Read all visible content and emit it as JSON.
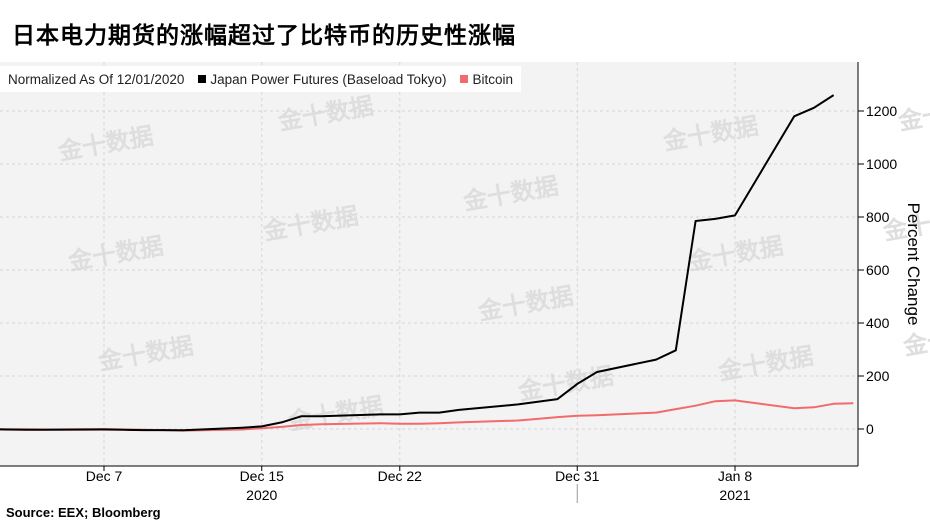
{
  "headline": "日本电力期货的涨幅超过了比特币的历史性涨幅",
  "watermark": "金十数据",
  "source": "Source: EEX; Bloomberg",
  "colors": {
    "japan": "#000000",
    "bitcoin": "#f26b6b",
    "grid": "#d6d6d6",
    "plot_bg": "#f3f3f3"
  },
  "chart_data": {
    "type": "line",
    "legend": {
      "note": "Normalized As Of 12/01/2020",
      "placement": "top-left"
    },
    "ylabel": "Percent Change",
    "y_axis_position": "right",
    "ylim": [
      -130,
      1400
    ],
    "yticks": [
      0,
      200,
      400,
      600,
      800,
      1000,
      1200
    ],
    "xlim": [
      "2020-12-01",
      "2021-01-13"
    ],
    "xticks": [
      {
        "date": "2020-12-07",
        "label": "Dec 7"
      },
      {
        "date": "2020-12-15",
        "label": "Dec 15"
      },
      {
        "date": "2020-12-22",
        "label": "Dec 22"
      },
      {
        "date": "2020-12-31",
        "label": "Dec 31"
      },
      {
        "date": "2021-01-08",
        "label": "Jan 8"
      }
    ],
    "year_labels": [
      {
        "date": "2020-12-15",
        "label": "2020"
      },
      {
        "date": "2021-01-08",
        "label": "2021"
      }
    ],
    "year_divider": "2020-12-31",
    "grid": true,
    "series": [
      {
        "name": "Japan Power Futures (Baseload Tokyo)",
        "color": "#000000",
        "points": [
          [
            "2020-12-01",
            0
          ],
          [
            "2020-12-02",
            -2
          ],
          [
            "2020-12-03",
            -3
          ],
          [
            "2020-12-04",
            -3
          ],
          [
            "2020-12-07",
            -2
          ],
          [
            "2020-12-08",
            -3
          ],
          [
            "2020-12-09",
            -4
          ],
          [
            "2020-12-10",
            -4
          ],
          [
            "2020-12-11",
            -5
          ],
          [
            "2020-12-14",
            5
          ],
          [
            "2020-12-15",
            10
          ],
          [
            "2020-12-16",
            25
          ],
          [
            "2020-12-17",
            48
          ],
          [
            "2020-12-18",
            48
          ],
          [
            "2020-12-21",
            55
          ],
          [
            "2020-12-22",
            55
          ],
          [
            "2020-12-23",
            62
          ],
          [
            "2020-12-24",
            62
          ],
          [
            "2020-12-25",
            72
          ],
          [
            "2020-12-28",
            93
          ],
          [
            "2020-12-29",
            103
          ],
          [
            "2020-12-30",
            113
          ],
          [
            "2020-12-31",
            170
          ],
          [
            "2021-01-01",
            215
          ],
          [
            "2021-01-04",
            262
          ],
          [
            "2021-01-05",
            297
          ],
          [
            "2021-01-06",
            785
          ],
          [
            "2021-01-07",
            793
          ],
          [
            "2021-01-08",
            806
          ],
          [
            "2021-01-11",
            1180
          ],
          [
            "2021-01-12",
            1212
          ],
          [
            "2021-01-13",
            1260
          ]
        ]
      },
      {
        "name": "Bitcoin",
        "color": "#f26b6b",
        "points": [
          [
            "2020-12-01",
            0
          ],
          [
            "2020-12-02",
            -1
          ],
          [
            "2020-12-03",
            -1
          ],
          [
            "2020-12-04",
            -2
          ],
          [
            "2020-12-07",
            0
          ],
          [
            "2020-12-08",
            -2
          ],
          [
            "2020-12-09",
            -3
          ],
          [
            "2020-12-10",
            -4
          ],
          [
            "2020-12-11",
            -6
          ],
          [
            "2020-12-14",
            -2
          ],
          [
            "2020-12-15",
            3
          ],
          [
            "2020-12-16",
            8
          ],
          [
            "2020-12-17",
            15
          ],
          [
            "2020-12-18",
            18
          ],
          [
            "2020-12-21",
            22
          ],
          [
            "2020-12-22",
            20
          ],
          [
            "2020-12-23",
            20
          ],
          [
            "2020-12-24",
            22
          ],
          [
            "2020-12-25",
            25
          ],
          [
            "2020-12-28",
            32
          ],
          [
            "2020-12-29",
            38
          ],
          [
            "2020-12-30",
            45
          ],
          [
            "2020-12-31",
            50
          ],
          [
            "2021-01-01",
            52
          ],
          [
            "2021-01-04",
            62
          ],
          [
            "2021-01-05",
            75
          ],
          [
            "2021-01-06",
            88
          ],
          [
            "2021-01-07",
            105
          ],
          [
            "2021-01-08",
            108
          ],
          [
            "2021-01-11",
            78
          ],
          [
            "2021-01-12",
            82
          ],
          [
            "2021-01-13",
            95
          ],
          [
            "2021-01-14",
            97
          ]
        ]
      }
    ]
  }
}
